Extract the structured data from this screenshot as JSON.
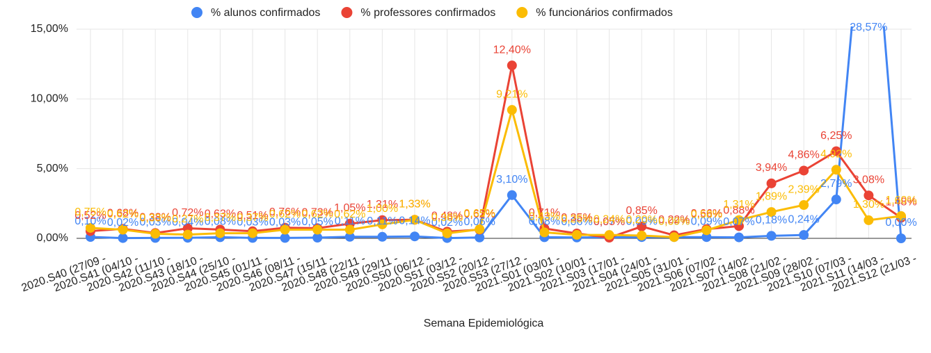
{
  "chart_data": {
    "type": "line",
    "x_label": "Semana Epidemiológica",
    "categories": [
      "2020.S40 (27/09 -",
      "2020.S41 (04/10 -",
      "2020.S42 (11/10 -",
      "2020.S43 (18/10 -",
      "2020.S44 (25/10 -",
      "2020.S45 (01/11 -",
      "2020.S46 (08/11 -",
      "2020.S47 (15/11 -",
      "2020.S48 (22/11 -",
      "2020.S49 (29/11 -",
      "2020.S50 (06/12 -",
      "2020.S51 (03/12 -",
      "2020.S52 (20/12 -",
      "2020.S53 (27/12 -",
      "2021.S01 (03/01 -",
      "2021.S02 (10/01 -",
      "2021.S03 (17/01 -",
      "2021.S04 (24/01 -",
      "2021.S05 (31/01 -",
      "2021.S06 (07/02 -",
      "2021.S07 (14/02 -",
      "2021.S08 (21/02 -",
      "2021.S09 (28/02 -",
      "2021.S10 (07/03 -",
      "2021.S11 (14/03 -",
      "2021.S12 (21/03 -"
    ],
    "series": [
      {
        "name": "% alunos confirmados",
        "color": "#4285f4",
        "values": [
          0.1,
          0.02,
          0.03,
          0.04,
          0.08,
          0.03,
          0.03,
          0.05,
          0.11,
          0.11,
          0.14,
          0.02,
          0.06,
          3.1,
          0.08,
          0.06,
          0.07,
          0.09,
          0.09,
          0.09,
          0.07,
          0.18,
          0.24,
          2.79,
          28.57,
          0.0
        ],
        "value_labels": [
          "0,10%",
          "0,02%",
          "0,03%",
          "0,04%",
          "0,08%",
          "0,03%",
          "0,03%",
          "0,05%",
          "0,11%",
          "0,11%",
          "0,14%",
          "0,02%",
          "0,06%",
          "3,10%",
          "0,08%",
          "0,06%",
          "0,07%",
          "0,09%",
          "0,09%",
          "0,09%",
          "0,07%",
          "0,18%",
          "0,24%",
          "2,79%",
          "28,57%",
          "0,00%"
        ]
      },
      {
        "name": "% professores confirmados",
        "color": "#ea4335",
        "values": [
          0.52,
          0.68,
          0.38,
          0.72,
          0.63,
          0.51,
          0.76,
          0.73,
          1.05,
          1.31,
          1.33,
          0.48,
          0.62,
          12.4,
          0.71,
          0.35,
          0.05,
          0.85,
          0.22,
          0.66,
          0.88,
          3.94,
          4.86,
          6.25,
          3.08,
          1.48
        ],
        "value_labels": [
          "0,52%",
          "0,68%",
          "0,38%",
          "0,72%",
          "0,63%",
          "0,51%",
          "0,76%",
          "0,73%",
          "1,05%",
          "1,31%",
          "1,33%",
          "0,48%",
          "0,62%",
          "12,40%",
          "0,71%",
          "0,35%",
          "0,05%",
          "0,85%",
          "0,22%",
          "0,66%",
          "0,88%",
          "3,94%",
          "4,86%",
          "6,25%",
          "3,08%",
          "1,48%"
        ]
      },
      {
        "name": "% funcionários confirmados",
        "color": "#fbbc04",
        "values": [
          0.75,
          0.62,
          0.33,
          0.27,
          0.37,
          0.37,
          0.62,
          0.62,
          0.62,
          1.0,
          1.33,
          0.36,
          0.65,
          9.21,
          0.43,
          0.25,
          0.24,
          0.2,
          0.09,
          0.58,
          1.31,
          1.89,
          2.39,
          4.92,
          1.3,
          1.6
        ],
        "value_labels": [
          "0,75%",
          "0,62%",
          "0,33%",
          "0,27%",
          "0,37%",
          "0,37%",
          "0,62%",
          "0,62%",
          "0,62%",
          "1,00%",
          "1,33%",
          "0,36%",
          "0,65%",
          "9,21%",
          "0,43%",
          "0,25%",
          "0,24%",
          "0,20%",
          "0,09%",
          "0,58%",
          "1,31%",
          "1,89%",
          "2,39%",
          "4,92%",
          "1,30%",
          "1,60%"
        ]
      }
    ],
    "ylim": [
      0,
      15
    ],
    "yticks": [
      {
        "value": 0,
        "label": "0,00%"
      },
      {
        "value": 5,
        "label": "5,00%"
      },
      {
        "value": 10,
        "label": "10,00%"
      },
      {
        "value": 15,
        "label": "15,00%"
      }
    ],
    "grid": true
  }
}
